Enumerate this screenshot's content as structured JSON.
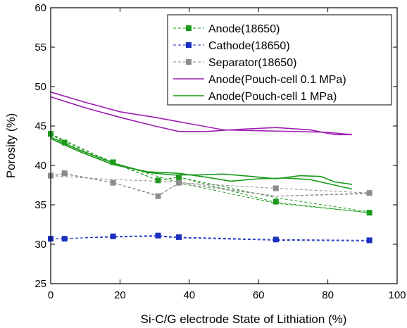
{
  "chart_data": {
    "type": "line",
    "title": "",
    "xlabel": "Si-C/G electrode State of Lithiation (%)",
    "ylabel": "Porosity (%)",
    "xlim": [
      0,
      100
    ],
    "ylim": [
      25,
      60
    ],
    "xticks": [
      0,
      20,
      40,
      60,
      80,
      100
    ],
    "yticks": [
      25,
      30,
      35,
      40,
      45,
      50,
      55,
      60
    ],
    "xtick_labels": [
      "0",
      "20",
      "40",
      "60",
      "80",
      "100"
    ],
    "ytick_labels": [
      "25",
      "30",
      "35",
      "40",
      "45",
      "50",
      "55",
      "60"
    ],
    "grid": false,
    "legend_position": "top-right",
    "series": [
      {
        "name": "Anode(18650)",
        "color": "#1a9a1a",
        "dash": "dashed",
        "marker": "square",
        "paths": [
          {
            "x": [
              0,
              4,
              18,
              31,
              37,
              65,
              92
            ],
            "y": [
              44.0,
              43.0,
              40.4,
              38.1,
              38.5,
              35.9,
              34.1
            ]
          },
          {
            "x": [
              0,
              4,
              18,
              31,
              37,
              65,
              92
            ],
            "y": [
              44.0,
              42.8,
              40.3,
              38.1,
              38.5,
              35.3,
              34.0
            ]
          },
          {
            "x": [
              0,
              18,
              37,
              65,
              92
            ],
            "y": [
              44.0,
              40.3,
              37.8,
              35.2,
              34.0
            ]
          }
        ],
        "markers": {
          "x": [
            0,
            4,
            18,
            31,
            37,
            65,
            92
          ],
          "y": [
            44.0,
            42.9,
            40.4,
            38.1,
            38.5,
            35.4,
            34.0
          ]
        }
      },
      {
        "name": "Cathode(18650)",
        "color": "#1a2fbf",
        "dash": "dashed",
        "marker": "square",
        "paths": [
          {
            "x": [
              0,
              4,
              18,
              31,
              37,
              65,
              92
            ],
            "y": [
              30.7,
              30.7,
              31.0,
              31.1,
              30.9,
              30.6,
              30.5
            ]
          },
          {
            "x": [
              0,
              18,
              31,
              37,
              65,
              92
            ],
            "y": [
              30.7,
              30.9,
              31.0,
              30.8,
              30.5,
              30.4
            ]
          }
        ],
        "markers": {
          "x": [
            0,
            4,
            18,
            31,
            37,
            65,
            92
          ],
          "y": [
            30.7,
            30.7,
            31.0,
            31.1,
            30.9,
            30.6,
            30.5
          ]
        }
      },
      {
        "name": "Separator(18650)",
        "color": "#8c8c8c",
        "dash": "dashed",
        "marker": "square",
        "paths": [
          {
            "x": [
              0,
              4,
              18,
              31,
              37,
              65,
              92
            ],
            "y": [
              38.7,
              39.0,
              37.8,
              36.1,
              37.8,
              37.1,
              36.5
            ]
          },
          {
            "x": [
              0,
              4,
              18,
              31,
              37,
              65,
              92
            ],
            "y": [
              38.7,
              38.9,
              37.8,
              36.2,
              37.7,
              36.1,
              36.5
            ]
          },
          {
            "x": [
              0,
              18,
              37,
              65,
              92
            ],
            "y": [
              38.7,
              38.2,
              37.9,
              36.1,
              36.4
            ]
          }
        ],
        "markers": {
          "x": [
            0,
            4,
            18,
            31,
            37,
            65,
            92
          ],
          "y": [
            38.7,
            39.0,
            37.8,
            36.1,
            37.8,
            37.1,
            36.5
          ]
        }
      },
      {
        "name": "Anode(Pouch-cell 0.1 MPa)",
        "color": "#9c1fb0",
        "dash": "solid",
        "marker": "none",
        "paths": [
          {
            "x": [
              0,
              10,
              20,
              30,
              40,
              50,
              60,
              70,
              80,
              87
            ],
            "y": [
              49.3,
              48.0,
              46.8,
              46.1,
              45.3,
              44.5,
              44.4,
              44.3,
              44.2,
              43.9
            ]
          },
          {
            "x": [
              0,
              10,
              20,
              30,
              37,
              45,
              55,
              65,
              75,
              82,
              87
            ],
            "y": [
              48.7,
              47.3,
              46.1,
              45.0,
              44.3,
              44.3,
              44.6,
              44.8,
              44.5,
              43.9,
              43.9
            ]
          }
        ]
      },
      {
        "name": "Anode(Pouch-cell 1 MPa)",
        "color": "#1a9a1a",
        "dash": "solid",
        "marker": "none",
        "paths": [
          {
            "x": [
              0,
              8,
              18,
              28,
              35,
              43,
              50,
              58,
              65,
              72,
              78,
              82,
              87
            ],
            "y": [
              43.6,
              42.0,
              40.3,
              39.1,
              38.8,
              38.8,
              38.9,
              38.6,
              38.3,
              38.7,
              38.6,
              37.9,
              37.6
            ]
          },
          {
            "x": [
              0,
              8,
              18,
              28,
              37,
              45,
              52,
              60,
              68,
              75,
              82,
              87
            ],
            "y": [
              43.4,
              41.8,
              40.1,
              39.2,
              39.0,
              38.5,
              38.0,
              38.3,
              38.4,
              38.2,
              37.5,
              37.0
            ]
          }
        ]
      }
    ]
  }
}
